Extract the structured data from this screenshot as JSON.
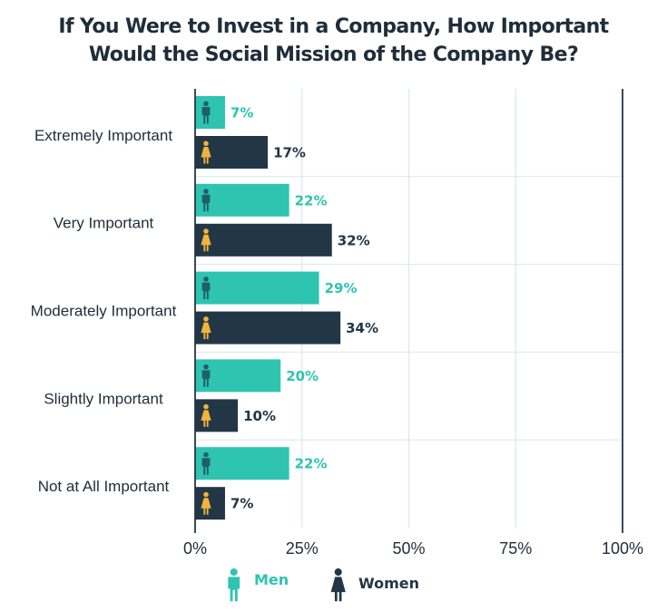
{
  "chart_data": {
    "type": "bar",
    "orientation": "horizontal",
    "title_lines": [
      "If You Were to Invest in a Company, How Important",
      "Would the Social Mission of the Company Be?"
    ],
    "categories": [
      "Extremely Important",
      "Very Important",
      "Moderately Important",
      "Slightly Important",
      "Not at All Important"
    ],
    "series": [
      {
        "name": "Men",
        "values": [
          7,
          22,
          29,
          20,
          22
        ],
        "color": "#2ec4b0",
        "label_color": "#2ec4b0",
        "icon_color": "#1f5f6a",
        "icon": "man-icon"
      },
      {
        "name": "Women",
        "values": [
          17,
          32,
          34,
          10,
          7
        ],
        "color": "#233645",
        "label_color": "#233645",
        "icon_color": "#f0b43c",
        "icon": "woman-icon"
      }
    ],
    "value_suffix": "%",
    "xlim": [
      0,
      100
    ],
    "xticks": [
      0,
      25,
      50,
      75,
      100
    ],
    "xtick_labels": [
      "0%",
      "25%",
      "50%",
      "75%",
      "100%"
    ],
    "grid": true,
    "legend_position": "bottom-left",
    "legend": [
      {
        "label": "Men",
        "icon": "man-icon",
        "color": "#2ec4b0"
      },
      {
        "label": "Women",
        "icon": "woman-icon",
        "color": "#233645"
      }
    ]
  }
}
